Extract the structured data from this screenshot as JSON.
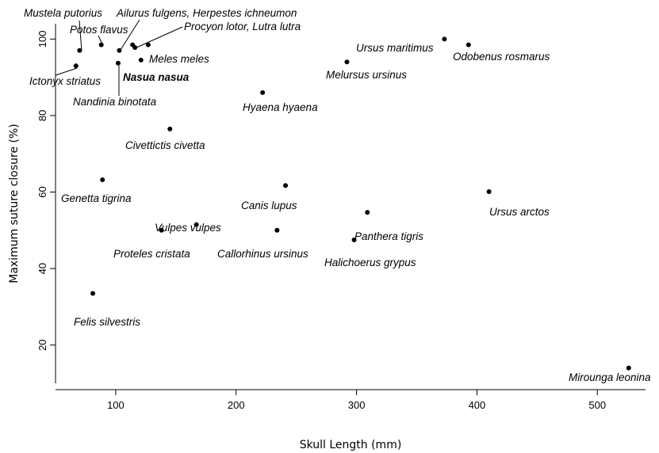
{
  "chart_data": {
    "type": "scatter",
    "xlabel": "Skull Length (mm)",
    "ylabel": "Maximum suture closure (%)",
    "xlim": [
      50,
      540
    ],
    "ylim": [
      10,
      104
    ],
    "xticks": [
      "100",
      "200",
      "300",
      "400",
      "500"
    ],
    "yticks": [
      "20",
      "40",
      "60",
      "80",
      "100"
    ],
    "grid": false,
    "legend": "none",
    "points": [
      {
        "label": "Mustela putorius",
        "x": 70,
        "y": 97
      },
      {
        "label": "Potos flavus",
        "x": 88,
        "y": 98.5
      },
      {
        "label": "Ailurus fulgens, Herpestes ichneumon",
        "x": 114,
        "y": 98.5
      },
      {
        "label": "Procyon lotor, Lutra lutra",
        "x": 116,
        "y": 97.8
      },
      {
        "label": "Meles meles",
        "x": 121,
        "y": 94.5
      },
      {
        "label": "Nasua nasua",
        "x": 102,
        "y": 93.7
      },
      {
        "label": "Nandinia binotata",
        "x": 103,
        "y": 97
      },
      {
        "label": "Ictonyx striatus",
        "x": 67,
        "y": 93
      },
      {
        "label": "",
        "x": 127,
        "y": 98.5
      },
      {
        "label": "Civettictis civetta",
        "x": 145,
        "y": 76.5
      },
      {
        "label": "Hyaena hyaena",
        "x": 222,
        "y": 86
      },
      {
        "label": "Melursus ursinus",
        "x": 292,
        "y": 94
      },
      {
        "label": "Ursus maritimus",
        "x": 373,
        "y": 100
      },
      {
        "label": "Odobenus rosmarus",
        "x": 393,
        "y": 98.5
      },
      {
        "label": "Genetta tigrina",
        "x": 89,
        "y": 63.2
      },
      {
        "label": "Canis lupus",
        "x": 241,
        "y": 61.7
      },
      {
        "label": "Ursus arctos",
        "x": 410,
        "y": 60.1
      },
      {
        "label": "Vulpes vulpes",
        "x": 167,
        "y": 51.5
      },
      {
        "label": "Proteles cristata",
        "x": 138,
        "y": 50
      },
      {
        "label": "Callorhinus ursinus",
        "x": 234,
        "y": 50
      },
      {
        "label": "Panthera tigris",
        "x": 309,
        "y": 54.7
      },
      {
        "label": "Halichoerus grypus",
        "x": 298,
        "y": 47.5
      },
      {
        "label": "Felis silvestris",
        "x": 81,
        "y": 33.5
      },
      {
        "label": "Mirounga leonina",
        "x": 526,
        "y": 14
      }
    ]
  }
}
